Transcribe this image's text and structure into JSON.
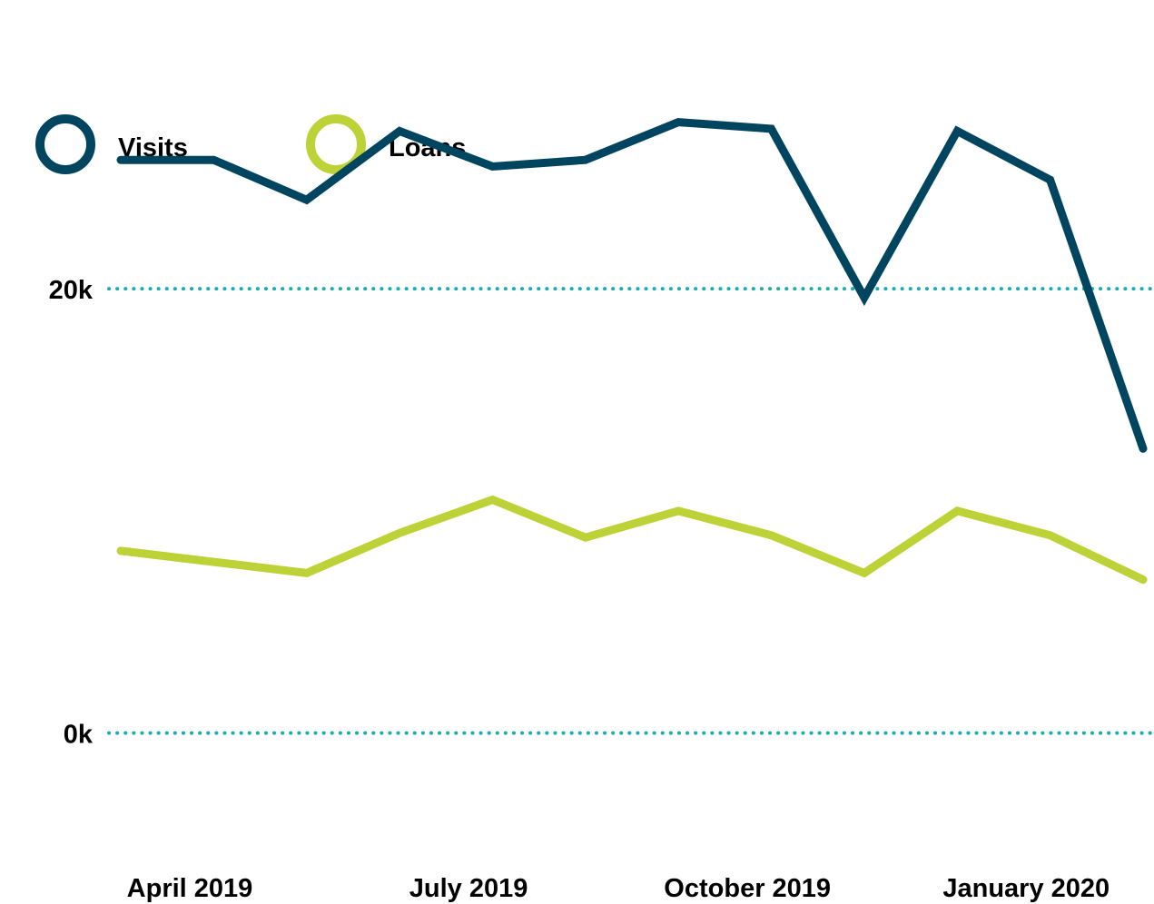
{
  "chart_data": {
    "type": "line",
    "title": "",
    "xlabel": "",
    "ylabel": "",
    "x": [
      "2019-04",
      "2019-05",
      "2019-06",
      "2019-07",
      "2019-08",
      "2019-09",
      "2019-10",
      "2019-11",
      "2019-12",
      "2020-01",
      "2020-02",
      "2020-03"
    ],
    "x_tick_labels": [
      {
        "x": "2019-04",
        "label": "April 2019"
      },
      {
        "x": "2019-07",
        "label": "July 2019"
      },
      {
        "x": "2019-10",
        "label": "October 2019"
      },
      {
        "x": "2020-01",
        "label": "January 2020"
      }
    ],
    "y_ticks": [
      {
        "value": 0,
        "label": "0k"
      },
      {
        "value": 20000,
        "label": "20k"
      }
    ],
    "ylim": [
      -7700,
      33000
    ],
    "grid": "dotted horizontal lines at y ticks",
    "legend_position": "top-left",
    "series": [
      {
        "name": "Visits",
        "color": "#004560",
        "values": [
          25800,
          25800,
          24000,
          27100,
          25500,
          25800,
          27500,
          27200,
          19600,
          27100,
          24900,
          12800
        ]
      },
      {
        "name": "Loans",
        "color": "#bdd236",
        "values": [
          8200,
          7700,
          7200,
          9000,
          10500,
          8800,
          10000,
          8900,
          7200,
          10000,
          8900,
          6900
        ]
      }
    ],
    "colors": {
      "grid": "#1aaeb0",
      "text": "#000000"
    }
  }
}
